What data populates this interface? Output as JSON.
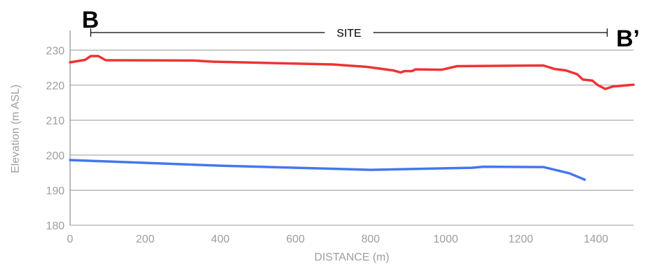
{
  "chart_data": {
    "type": "line",
    "title": "",
    "xlabel": "DISTANCE (m)",
    "ylabel": "Elevation (m ASL)",
    "xlim": [
      0,
      1500
    ],
    "ylim": [
      180,
      235
    ],
    "xticks": [
      "0",
      "200",
      "400",
      "600",
      "800",
      "1000",
      "1200",
      "1400"
    ],
    "yticks": [
      "180",
      "190",
      "200",
      "210",
      "220",
      "230"
    ],
    "grid": "horizontal",
    "section_start_label": "B",
    "section_end_label": "B’",
    "site": {
      "label": "SITE",
      "x_start": 55,
      "x_end": 1430
    },
    "series": [
      {
        "color": "#ee3333",
        "points": [
          [
            0,
            226.5
          ],
          [
            40,
            227.2
          ],
          [
            55,
            228.3
          ],
          [
            75,
            228.3
          ],
          [
            95,
            227.1
          ],
          [
            330,
            227.0
          ],
          [
            380,
            226.7
          ],
          [
            700,
            225.9
          ],
          [
            790,
            225.2
          ],
          [
            860,
            224.2
          ],
          [
            880,
            223.6
          ],
          [
            890,
            224.0
          ],
          [
            910,
            224.0
          ],
          [
            920,
            224.5
          ],
          [
            990,
            224.4
          ],
          [
            1030,
            225.4
          ],
          [
            1260,
            225.6
          ],
          [
            1290,
            224.6
          ],
          [
            1320,
            224.2
          ],
          [
            1350,
            223.1
          ],
          [
            1365,
            221.6
          ],
          [
            1390,
            221.3
          ],
          [
            1405,
            220.0
          ],
          [
            1425,
            218.9
          ],
          [
            1445,
            219.6
          ],
          [
            1500,
            220.1
          ]
        ]
      },
      {
        "color": "#4477ee",
        "points": [
          [
            0,
            198.6
          ],
          [
            100,
            198.2
          ],
          [
            400,
            197.0
          ],
          [
            800,
            195.8
          ],
          [
            1070,
            196.4
          ],
          [
            1100,
            196.7
          ],
          [
            1260,
            196.6
          ],
          [
            1330,
            194.8
          ],
          [
            1370,
            193.0
          ]
        ]
      }
    ],
    "colors": {
      "grid": "#9a9a9a",
      "axis": "#555555",
      "text_muted": "#9e9e9e"
    }
  }
}
